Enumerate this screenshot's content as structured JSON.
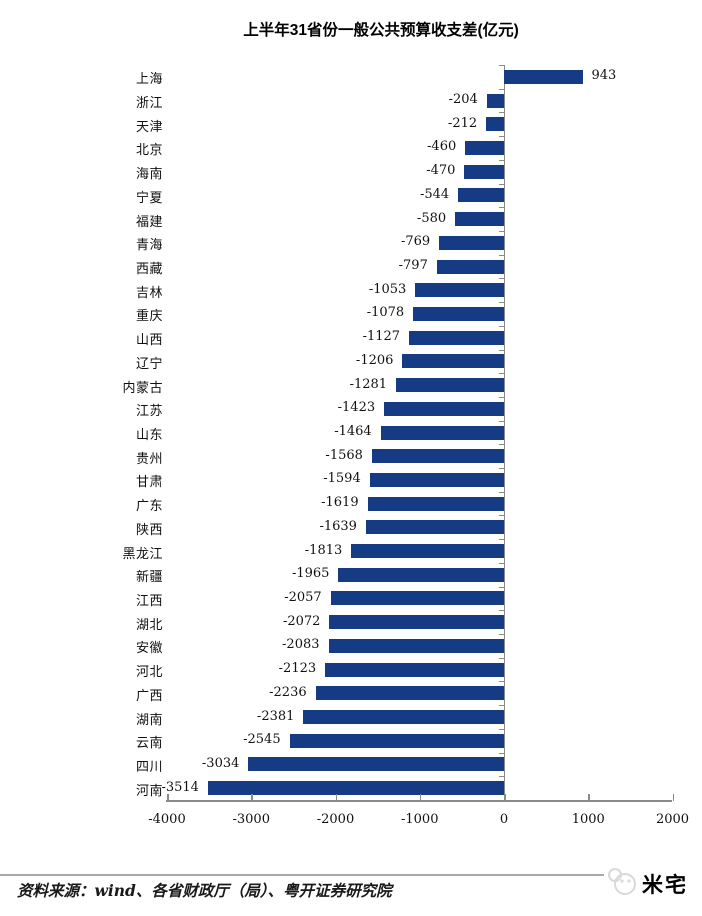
{
  "title": "上半年31省份一般公共预算收支差(亿元)",
  "chart_data": {
    "type": "bar",
    "orientation": "horizontal",
    "title": "上半年31省份一般公共预算收支差(亿元)",
    "categories": [
      "上海",
      "浙江",
      "天津",
      "北京",
      "海南",
      "宁夏",
      "福建",
      "青海",
      "西藏",
      "吉林",
      "重庆",
      "山西",
      "辽宁",
      "内蒙古",
      "江苏",
      "山东",
      "贵州",
      "甘肃",
      "广东",
      "陕西",
      "黑龙江",
      "新疆",
      "江西",
      "湖北",
      "安徽",
      "河北",
      "广西",
      "湖南",
      "云南",
      "四川",
      "河南"
    ],
    "values": [
      943,
      -204,
      -212,
      -460,
      -470,
      -544,
      -580,
      -769,
      -797,
      -1053,
      -1078,
      -1127,
      -1206,
      -1281,
      -1423,
      -1464,
      -1568,
      -1594,
      -1619,
      -1639,
      -1813,
      -1965,
      -2057,
      -2072,
      -2083,
      -2123,
      -2236,
      -2381,
      -2545,
      -3034,
      -3514
    ],
    "xlabel": "",
    "ylabel": "",
    "xlim": [
      -4000,
      2000
    ],
    "x_ticks": [
      -4000,
      -3000,
      -2000,
      -1000,
      0,
      1000,
      2000
    ],
    "grid": false,
    "value_labels": true,
    "bar_color": "#143b84",
    "axis_color": "#8a8a8a",
    "label_color": "#111111"
  },
  "footer": {
    "source_text": "资料来源：wind、各省财政厅（局）、粤开证券研究院",
    "watermark": "米宅",
    "watermark_color": "#d9d9d9"
  }
}
